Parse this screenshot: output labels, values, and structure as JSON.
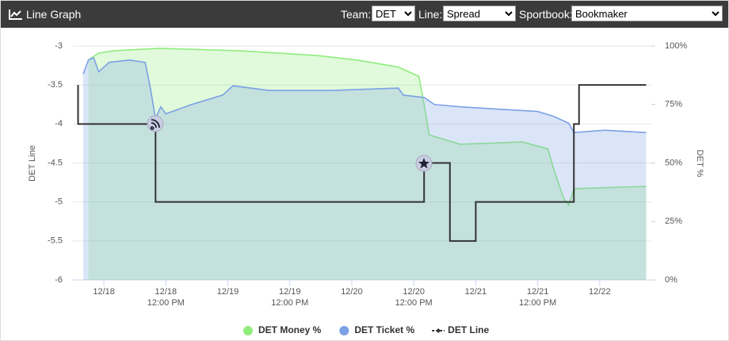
{
  "header": {
    "title": "Line Graph",
    "team_label": "Team:",
    "team": "DET",
    "line_label": "Line:",
    "line": "Spread",
    "book_label": "Sportbook:",
    "book": "Bookmaker"
  },
  "chart_data": {
    "type": "line",
    "y_label": "DET Line",
    "y2_label": "DET %",
    "xlim": [
      "12/17 18:00",
      "12/22 10:00"
    ],
    "xticks": [
      {
        "value": "12/18 00:00",
        "label": [
          "12/18"
        ]
      },
      {
        "value": "12/18 12:00",
        "label": [
          "12/18",
          "12:00 PM"
        ]
      },
      {
        "value": "12/19 00:00",
        "label": [
          "12/19"
        ]
      },
      {
        "value": "12/19 12:00",
        "label": [
          "12/19",
          "12:00 PM"
        ]
      },
      {
        "value": "12/20 00:00",
        "label": [
          "12/20"
        ]
      },
      {
        "value": "12/20 12:00",
        "label": [
          "12/20",
          "12:00 PM"
        ]
      },
      {
        "value": "12/21 00:00",
        "label": [
          "12/21"
        ]
      },
      {
        "value": "12/21 12:00",
        "label": [
          "12/21",
          "12:00 PM"
        ]
      },
      {
        "value": "12/22 00:00",
        "label": [
          "12/22"
        ]
      }
    ],
    "ylim": [
      -6,
      -3
    ],
    "yticks": [
      -6,
      -5.5,
      -5,
      -4.5,
      -4,
      -3.5,
      -3
    ],
    "y2lim": [
      0,
      100
    ],
    "y2ticks": [
      {
        "value": 0,
        "label": "0%"
      },
      {
        "value": 25,
        "label": "25%"
      },
      {
        "value": 50,
        "label": "50%"
      },
      {
        "value": 75,
        "label": "75%"
      },
      {
        "value": 100,
        "label": "100%"
      }
    ],
    "grid": true,
    "legend": "bottom",
    "series": [
      {
        "name": "DET Money %",
        "color": "#90ed7d",
        "axis": "y2",
        "area": true,
        "x": [
          "12/17 21:00",
          "12/17 23:00",
          "12/18 02:00",
          "12/18 11:00",
          "12/19 02:00",
          "12/19 17:00",
          "12/20 01:00",
          "12/20 09:00",
          "12/20 13:00",
          "12/20 14:00",
          "12/20 15:00",
          "12/20 21:00",
          "12/21 09:00",
          "12/21 14:00",
          "12/21 15:00",
          "12/21 17:00",
          "12/21 18:00",
          "12/21 19:00",
          "12/22 09:00"
        ],
        "values": [
          94,
          97,
          98,
          99,
          98,
          96,
          94,
          91,
          87,
          75,
          62,
          58,
          59,
          56,
          48,
          35,
          32,
          39,
          40
        ]
      },
      {
        "name": "DET Ticket %",
        "color": "#7ca1e6",
        "axis": "y2",
        "area": true,
        "x": [
          "12/17 20:00",
          "12/17 21:00",
          "12/17 22:00",
          "12/17 23:00",
          "12/18 01:00",
          "12/18 05:00",
          "12/18 08:00",
          "12/18 09:00",
          "12/18 10:00",
          "12/18 11:00",
          "12/18 12:00",
          "12/18 17:00",
          "12/18 23:00",
          "12/19 01:00",
          "12/19 08:00",
          "12/19 20:00",
          "12/20 09:00",
          "12/20 10:00",
          "12/20 14:00",
          "12/20 16:00",
          "12/20 21:00",
          "12/21 12:00",
          "12/21 15:00",
          "12/21 18:00",
          "12/21 19:00",
          "12/22 01:00",
          "12/22 09:00"
        ],
        "values": [
          88,
          94,
          95,
          89,
          93,
          94,
          93,
          82,
          69,
          74,
          71,
          75,
          79,
          83,
          81,
          81,
          82,
          79,
          78,
          75,
          74,
          72,
          70,
          67,
          63,
          64,
          63
        ]
      },
      {
        "name": "DET Line",
        "color": "#333333",
        "step": true,
        "x": [
          "12/17 19:00",
          "12/17 19:00",
          "12/18 10:00",
          "12/20 14:00",
          "12/20 19:00",
          "12/21 00:00",
          "12/21 19:00",
          "12/21 20:00",
          "12/22 09:00"
        ],
        "values": [
          -3.5,
          -4,
          -5,
          -4.5,
          -5.5,
          -5,
          -4,
          -3.5,
          -3.5
        ]
      }
    ]
  }
}
